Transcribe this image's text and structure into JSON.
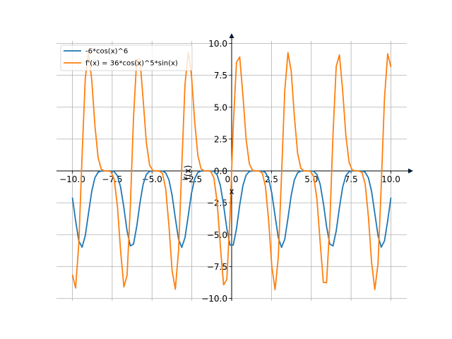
{
  "chart_data": {
    "type": "line",
    "title": "",
    "xlabel": "x",
    "ylabel": "f(x)",
    "xlim": [
      -10.0,
      10.0
    ],
    "ylim": [
      -10.0,
      10.0
    ],
    "grid": true,
    "legend_position": "top-left",
    "x_ticks": [
      -10.0,
      -7.5,
      -5.0,
      -2.5,
      0.0,
      2.5,
      5.0,
      7.5,
      10.0
    ],
    "y_ticks": [
      -10.0,
      -7.5,
      -5.0,
      -2.5,
      0.0,
      2.5,
      5.0,
      7.5,
      10.0
    ],
    "x_tick_labels": [
      "−10.0",
      "−7.5",
      "−5.0",
      "−2.5",
      "0.0",
      "2.5",
      "5.0",
      "7.5",
      "10.0"
    ],
    "y_tick_labels": [
      "−10.0",
      "−7.5",
      "−5.0",
      "−2.5",
      "0.0",
      "2.5",
      "5.0",
      "7.5",
      "10.0"
    ],
    "sample_count": 100,
    "series": [
      {
        "name": "-6*cos(x)^6",
        "formula": "-6*cos(x)^6",
        "color": "#1f77b4"
      },
      {
        "name": "f'(x) = 36*cos(x)^5*sin(x)",
        "formula": "36*cos(x)^5*sin(x)",
        "color": "#ff7f0e"
      }
    ]
  }
}
